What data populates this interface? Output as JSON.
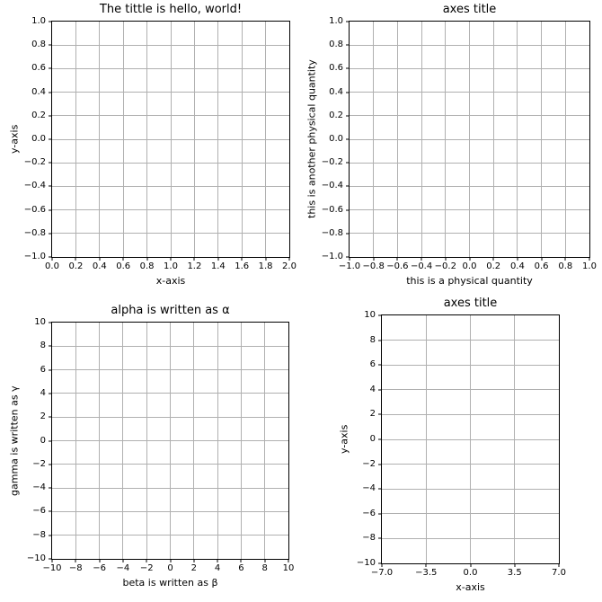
{
  "figure": {
    "background_color": "#ffffff",
    "spine_color": "#000000",
    "grid_color": "#b0b0b0",
    "text_color": "#000000"
  },
  "chart_data": [
    {
      "type": "line",
      "title": "The tittle is hello, world!",
      "xlabel": "x-axis",
      "ylabel": "y-axis",
      "xlim": [
        0.0,
        2.0
      ],
      "ylim": [
        -1.0,
        1.0
      ],
      "xticks": [
        "0.0",
        "0.2",
        "0.4",
        "0.6",
        "0.8",
        "1.0",
        "1.2",
        "1.4",
        "1.6",
        "1.8",
        "2.0"
      ],
      "yticks": [
        "1.0",
        "0.8",
        "0.6",
        "0.4",
        "0.2",
        "0.0",
        "−0.2",
        "−0.4",
        "−0.6",
        "−0.8",
        "−1.0"
      ],
      "grid": true,
      "legend": false,
      "series": []
    },
    {
      "type": "line",
      "title": "axes title",
      "xlabel": "this is a physical quantity",
      "ylabel": "this is another physical quantity",
      "xlim": [
        -1.0,
        1.0
      ],
      "ylim": [
        -1.0,
        1.0
      ],
      "xticks": [
        "−1.0",
        "−0.8",
        "−0.6",
        "−0.4",
        "−0.2",
        "0.0",
        "0.2",
        "0.4",
        "0.6",
        "0.8",
        "1.0"
      ],
      "yticks": [
        "1.0",
        "0.8",
        "0.6",
        "0.4",
        "0.2",
        "0.0",
        "−0.2",
        "−0.4",
        "−0.6",
        "−0.8",
        "−1.0"
      ],
      "grid": true,
      "legend": false,
      "series": []
    },
    {
      "type": "line",
      "title": "alpha is written as α",
      "xlabel": "beta is written as β",
      "ylabel": "gamma is written as γ",
      "xlim": [
        -10,
        10
      ],
      "ylim": [
        -10,
        10
      ],
      "xticks": [
        "−10",
        "−8",
        "−6",
        "−4",
        "−2",
        "0",
        "2",
        "4",
        "6",
        "8",
        "10"
      ],
      "yticks": [
        "10",
        "8",
        "6",
        "4",
        "2",
        "0",
        "−2",
        "−4",
        "−6",
        "−8",
        "−10"
      ],
      "grid": true,
      "legend": false,
      "series": []
    },
    {
      "type": "line",
      "title": "axes title",
      "xlabel": "x-axis",
      "ylabel": "y-axis",
      "xlim": [
        -7.0,
        7.0
      ],
      "ylim": [
        -10,
        10
      ],
      "xticks": [
        "−7.0",
        "−3.5",
        "0.0",
        "3.5",
        "7.0"
      ],
      "yticks": [
        "10",
        "8",
        "6",
        "4",
        "2",
        "0",
        "−2",
        "−4",
        "−6",
        "−8",
        "−10"
      ],
      "grid": true,
      "legend": false,
      "series": []
    }
  ]
}
